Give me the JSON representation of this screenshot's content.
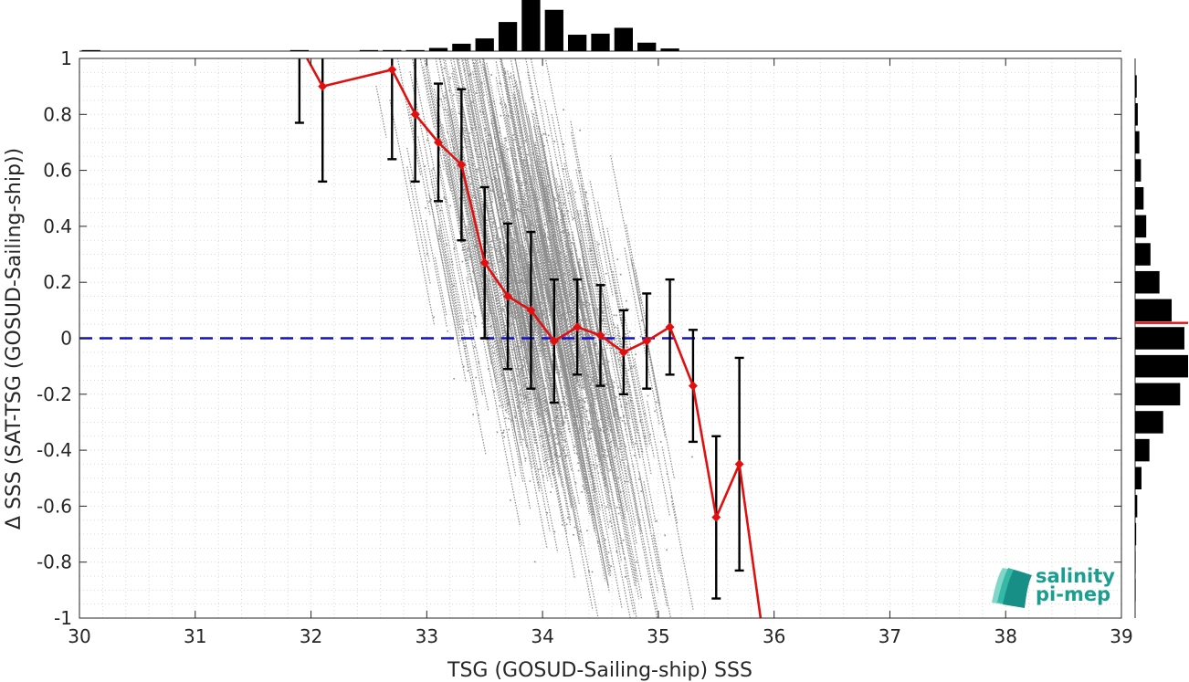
{
  "chart_data": {
    "type": "scatter",
    "xlabel": "TSG (GOSUD-Sailing-ship) SSS",
    "ylabel": "Δ SSS (SAT-TSG (GOSUD-Sailing-ship))",
    "xlim": [
      30,
      39
    ],
    "ylim": [
      -1,
      1
    ],
    "xticks": [
      "30",
      "31",
      "32",
      "33",
      "34",
      "35",
      "36",
      "37",
      "38",
      "39"
    ],
    "yticks": [
      "-1",
      "-0.8",
      "-0.6",
      "-0.4",
      "-0.2",
      "0",
      "0.2",
      "0.4",
      "0.6",
      "0.8",
      "1"
    ],
    "grid": "minor dotted",
    "reference_line": {
      "y": 0,
      "style": "dashed",
      "color": "#1010cc"
    },
    "colors": {
      "scatter": "#8c8c8c",
      "mean_line": "#e01010",
      "errorbar": "#000000",
      "histogram": "#000000"
    },
    "binned_mean": {
      "x": [
        31.9,
        32.1,
        32.7,
        32.9,
        33.1,
        33.3,
        33.5,
        33.7,
        33.9,
        34.1,
        34.3,
        34.5,
        34.7,
        34.9,
        35.1,
        35.3,
        35.5,
        35.7,
        35.9
      ],
      "mean": [
        1.05,
        0.9,
        0.96,
        0.8,
        0.7,
        0.62,
        0.27,
        0.15,
        0.1,
        -0.01,
        0.04,
        0.01,
        -0.05,
        -0.01,
        0.04,
        -0.17,
        -0.64,
        -0.45,
        -1.05
      ],
      "std": [
        0.28,
        0.34,
        0.32,
        0.24,
        0.21,
        0.27,
        0.27,
        0.26,
        0.28,
        0.22,
        0.17,
        0.18,
        0.15,
        0.17,
        0.17,
        0.2,
        0.29,
        0.38,
        null
      ]
    },
    "scatter_cloud": {
      "x_range": [
        32.0,
        35.4
      ],
      "trend": "negative slope, densest near 34.0"
    },
    "top_histogram": {
      "bin_centers": [
        30.1,
        31.9,
        32.5,
        32.7,
        32.9,
        33.1,
        33.3,
        33.5,
        33.7,
        33.9,
        34.1,
        34.3,
        34.5,
        34.7,
        34.9,
        35.1
      ],
      "counts": [
        0.02,
        0.02,
        0.02,
        0.02,
        0.02,
        0.06,
        0.14,
        0.24,
        0.55,
        1.0,
        0.78,
        0.31,
        0.33,
        0.44,
        0.16,
        0.05
      ]
    },
    "right_histogram": {
      "bin_centers": [
        0.9,
        0.8,
        0.7,
        0.6,
        0.5,
        0.4,
        0.3,
        0.2,
        0.1,
        0.0,
        -0.1,
        -0.2,
        -0.3,
        -0.4,
        -0.5,
        -0.6,
        -0.7,
        -0.8,
        -0.9
      ],
      "counts": [
        0.03,
        0.05,
        0.08,
        0.11,
        0.16,
        0.21,
        0.29,
        0.46,
        0.69,
        0.93,
        1.0,
        0.85,
        0.53,
        0.27,
        0.12,
        0.04,
        0.02,
        0.01,
        0.01
      ],
      "mean_marker": 0.055
    }
  },
  "logo": {
    "line1": "salinity",
    "line2": "pi-mep"
  }
}
